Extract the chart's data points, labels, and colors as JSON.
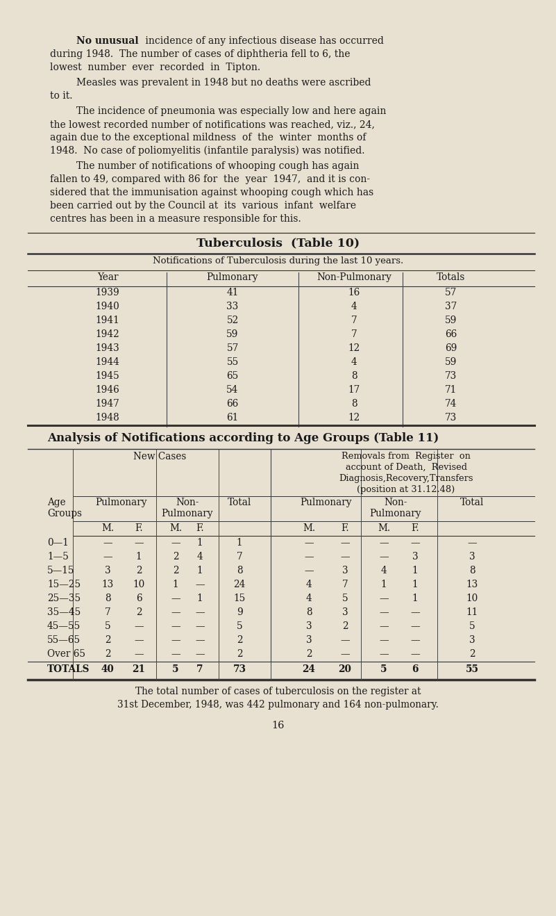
{
  "bg_color": "#e8e0d0",
  "text_color": "#1a1a1a",
  "page_number": "16",
  "para1_bold": "No unusual",
  "para1_rest_line1": " incidence of any infectious disease has occurred",
  "para1_line2": "during 1948.  The number of cases of diphtheria fell to 6, the",
  "para1_line3": "lowest  number  ever  recorded  in  Tipton.",
  "para2_line1": "Measles was prevalent in 1948 but no deaths were ascribed",
  "para2_line2": "to it.",
  "para3_line1": "The incidence of pneumonia was especially low and here again",
  "para3_line2": "the lowest recorded number of notifications was reached, viz., 24,",
  "para3_line3": "again due to the exceptional mildness  of  the  winter  months of",
  "para3_line4": "1948.  No case of poliomyelitis (infantile paralysis) was notified.",
  "para4_line1": "The number of notifications of whooping cough has again",
  "para4_line2": "fallen to 49, compared with 86 for  the  year  1947,  and it is con-",
  "para4_line3": "sidered that the immunisation against whooping cough which has",
  "para4_line4": "been carried out by the Council at  its  various  infant  welfare",
  "para4_line5": "centres has been in a measure responsible for this.",
  "table10_title": "Tuberculosis  (Table 10)",
  "table10_subtitle": "Notifications of Tuberculosis during the last 10 years.",
  "table10_headers": [
    "Year",
    "Pulmonary",
    "Non-Pulmonary",
    "Totals"
  ],
  "table10_data": [
    [
      "1939",
      "41",
      "16",
      "57"
    ],
    [
      "1940",
      "33",
      "4",
      "37"
    ],
    [
      "1941",
      "52",
      "7",
      "59"
    ],
    [
      "1942",
      "59",
      "7",
      "66"
    ],
    [
      "1943",
      "57",
      "12",
      "69"
    ],
    [
      "1944",
      "55",
      "4",
      "59"
    ],
    [
      "1945",
      "65",
      "8",
      "73"
    ],
    [
      "1946",
      "54",
      "17",
      "71"
    ],
    [
      "1947",
      "66",
      "8",
      "74"
    ],
    [
      "1948",
      "61",
      "12",
      "73"
    ]
  ],
  "table11_title": "Analysis of Notifications according to Age Groups (Table 11)",
  "table11_new_cases_header": "New Cases",
  "table11_removals_header_l1": "Removals from  Register  on",
  "table11_removals_header_l2": "account of Death,  Revised",
  "table11_removals_header_l3": "Diagnosis,Recovery,Transfers",
  "table11_removals_header_l4": "(position at 31.12.48)",
  "table11_data": [
    [
      "0—1",
      "—",
      "—",
      "—",
      "1",
      "1",
      "—",
      "—",
      "—",
      "—",
      "—"
    ],
    [
      "1—5",
      "—",
      "1",
      "2",
      "4",
      "7",
      "—",
      "—",
      "—",
      "3",
      "3"
    ],
    [
      "5—15",
      "3",
      "2",
      "2",
      "1",
      "8",
      "—",
      "3",
      "4",
      "1",
      "8"
    ],
    [
      "15—25",
      "13",
      "10",
      "1",
      "—",
      "24",
      "4",
      "7",
      "1",
      "1",
      "13"
    ],
    [
      "25—35",
      "8",
      "6",
      "—",
      "1",
      "15",
      "4",
      "5",
      "—",
      "1",
      "10"
    ],
    [
      "35—45",
      "7",
      "2",
      "—",
      "—",
      "9",
      "8",
      "3",
      "—",
      "—",
      "11"
    ],
    [
      "45—55",
      "5",
      "—",
      "—",
      "—",
      "5",
      "3",
      "2",
      "—",
      "—",
      "5"
    ],
    [
      "55—65",
      "2",
      "—",
      "—",
      "—",
      "2",
      "3",
      "—",
      "—",
      "—",
      "3"
    ],
    [
      "Over 65",
      "2",
      "—",
      "—",
      "—",
      "2",
      "2",
      "—",
      "—",
      "—",
      "2"
    ]
  ],
  "table11_totals": [
    "TOTALS",
    "40",
    "21",
    "5",
    "7",
    "73",
    "24",
    "20",
    "5",
    "6",
    "55"
  ],
  "footer_line1": "The total number of cases of tuberculosis on the register at",
  "footer_line2": "31st December, 1948, was 442 pulmonary and 164 non-pulmonary."
}
